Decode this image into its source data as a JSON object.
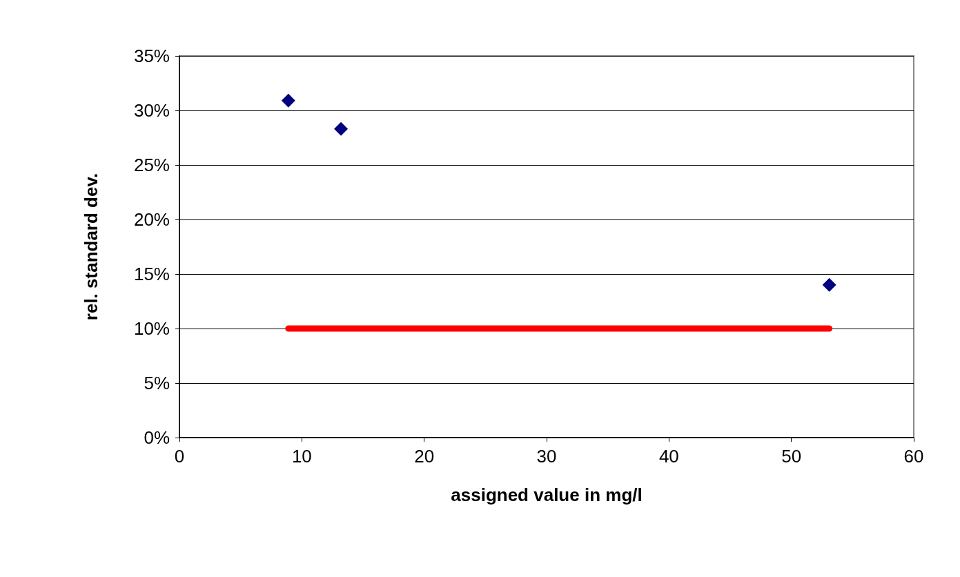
{
  "chart_data": {
    "type": "scatter",
    "xlabel": "assigned value in mg/l",
    "ylabel": "rel. standard dev.",
    "xlim": [
      0,
      60
    ],
    "xticks": [
      0,
      10,
      20,
      30,
      40,
      50,
      60
    ],
    "ylim": [
      0,
      35
    ],
    "yticks": [
      {
        "value": 0,
        "label": "0%"
      },
      {
        "value": 5,
        "label": "5%"
      },
      {
        "value": 10,
        "label": "10%"
      },
      {
        "value": 15,
        "label": "15%"
      },
      {
        "value": 20,
        "label": "20%"
      },
      {
        "value": 25,
        "label": "25%"
      },
      {
        "value": 30,
        "label": "30%"
      },
      {
        "value": 35,
        "label": "35%"
      }
    ],
    "grid": "y",
    "series": [
      {
        "color": "#000080",
        "marker": "diamond",
        "x": [
          8.9,
          13.2,
          53.1
        ],
        "values": [
          30.9,
          28.3,
          14.0
        ]
      },
      {
        "type": "line",
        "color": "#ff0000",
        "marker": "none",
        "line_style": "solid",
        "x": [
          8.9,
          53.1
        ],
        "values": [
          10,
          10
        ]
      }
    ]
  }
}
